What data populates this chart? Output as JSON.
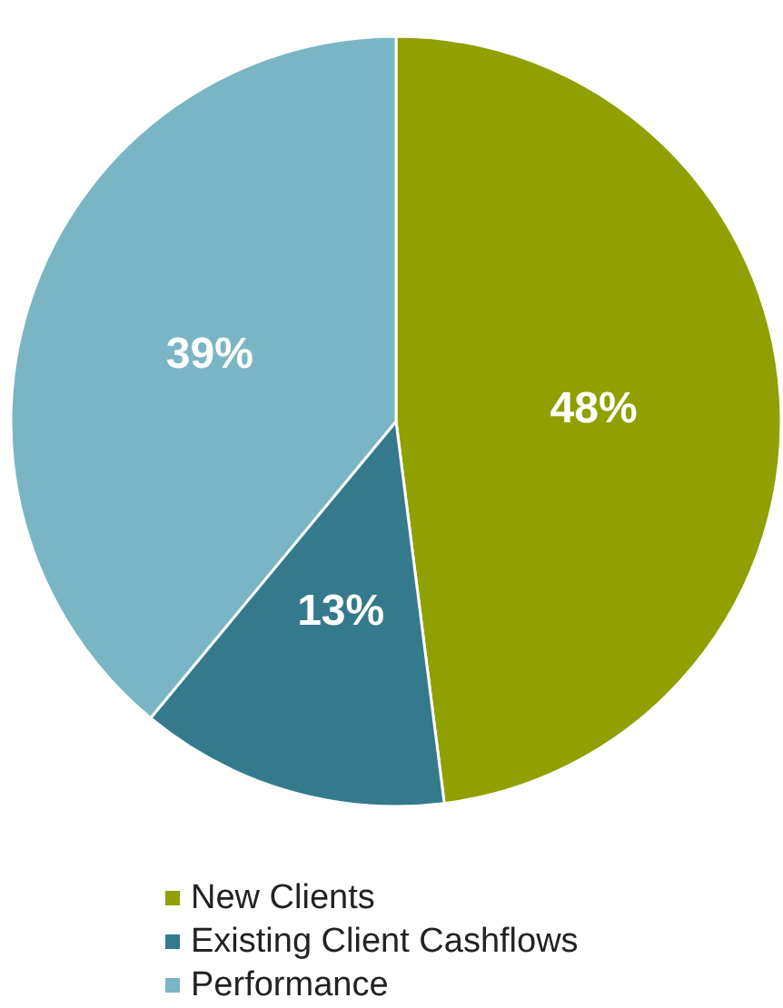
{
  "chart_data": {
    "type": "pie",
    "categories": [
      "New Clients",
      "Existing Client Cashflows",
      "Performance"
    ],
    "values": [
      48,
      13,
      39
    ],
    "colors": [
      "#8fa000",
      "#357a8c",
      "#7ab5c5"
    ],
    "value_labels": [
      "48%",
      "13%",
      "39%"
    ],
    "legend": "bottom"
  }
}
